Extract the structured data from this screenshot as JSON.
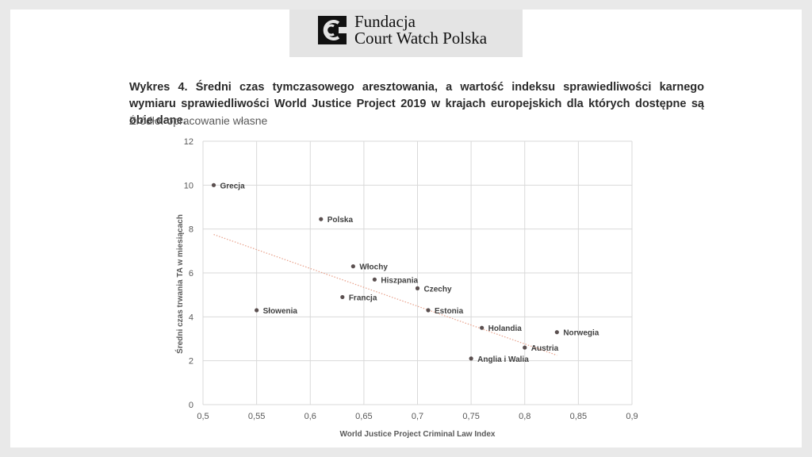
{
  "header": {
    "logo_line1": "Fundacja",
    "logo_line2": "Court Watch Polska"
  },
  "caption": {
    "line1": "Wykres 4. Średni czas tymczasowego aresztowania, a wartość indeksu sprawiedliwości karnego wymiaru sprawiedliwości World Justice Project 2019 w krajach europejskich dla których dostępne są obie dane.",
    "source": "Źródło: opracowanie własne"
  },
  "colors": {
    "point": "#5b5050",
    "trendline": "#e8a08a",
    "grid": "#d9d9d9"
  },
  "chart_data": {
    "type": "scatter",
    "title": "",
    "xlabel": "World Justice Project Criminal Law Index",
    "ylabel": "Średni czas trwania TA w miesiącach",
    "xlim": [
      0.5,
      0.9
    ],
    "ylim": [
      0,
      12
    ],
    "x_ticks": [
      "0,5",
      "0,55",
      "0,6",
      "0,65",
      "0,7",
      "0,75",
      "0,8",
      "0,85",
      "0,9"
    ],
    "y_ticks": [
      "0",
      "2",
      "4",
      "6",
      "8",
      "10",
      "12"
    ],
    "grid": true,
    "trendline": {
      "type": "linear",
      "x": [
        0.51,
        0.83
      ],
      "y": [
        7.75,
        2.25
      ]
    },
    "points": [
      {
        "label": "Grecja",
        "x": 0.51,
        "y": 10.0
      },
      {
        "label": "Polska",
        "x": 0.61,
        "y": 8.45
      },
      {
        "label": "Włochy",
        "x": 0.64,
        "y": 6.3
      },
      {
        "label": "Hiszpania",
        "x": 0.66,
        "y": 5.7
      },
      {
        "label": "Czechy",
        "x": 0.7,
        "y": 5.3
      },
      {
        "label": "Francja",
        "x": 0.63,
        "y": 4.9
      },
      {
        "label": "Słowenia",
        "x": 0.55,
        "y": 4.3
      },
      {
        "label": "Estonia",
        "x": 0.71,
        "y": 4.3
      },
      {
        "label": "Holandia",
        "x": 0.76,
        "y": 3.5
      },
      {
        "label": "Norwegia",
        "x": 0.83,
        "y": 3.3
      },
      {
        "label": "Austria",
        "x": 0.8,
        "y": 2.6
      },
      {
        "label": "Anglia i Walia",
        "x": 0.75,
        "y": 2.1
      }
    ]
  }
}
